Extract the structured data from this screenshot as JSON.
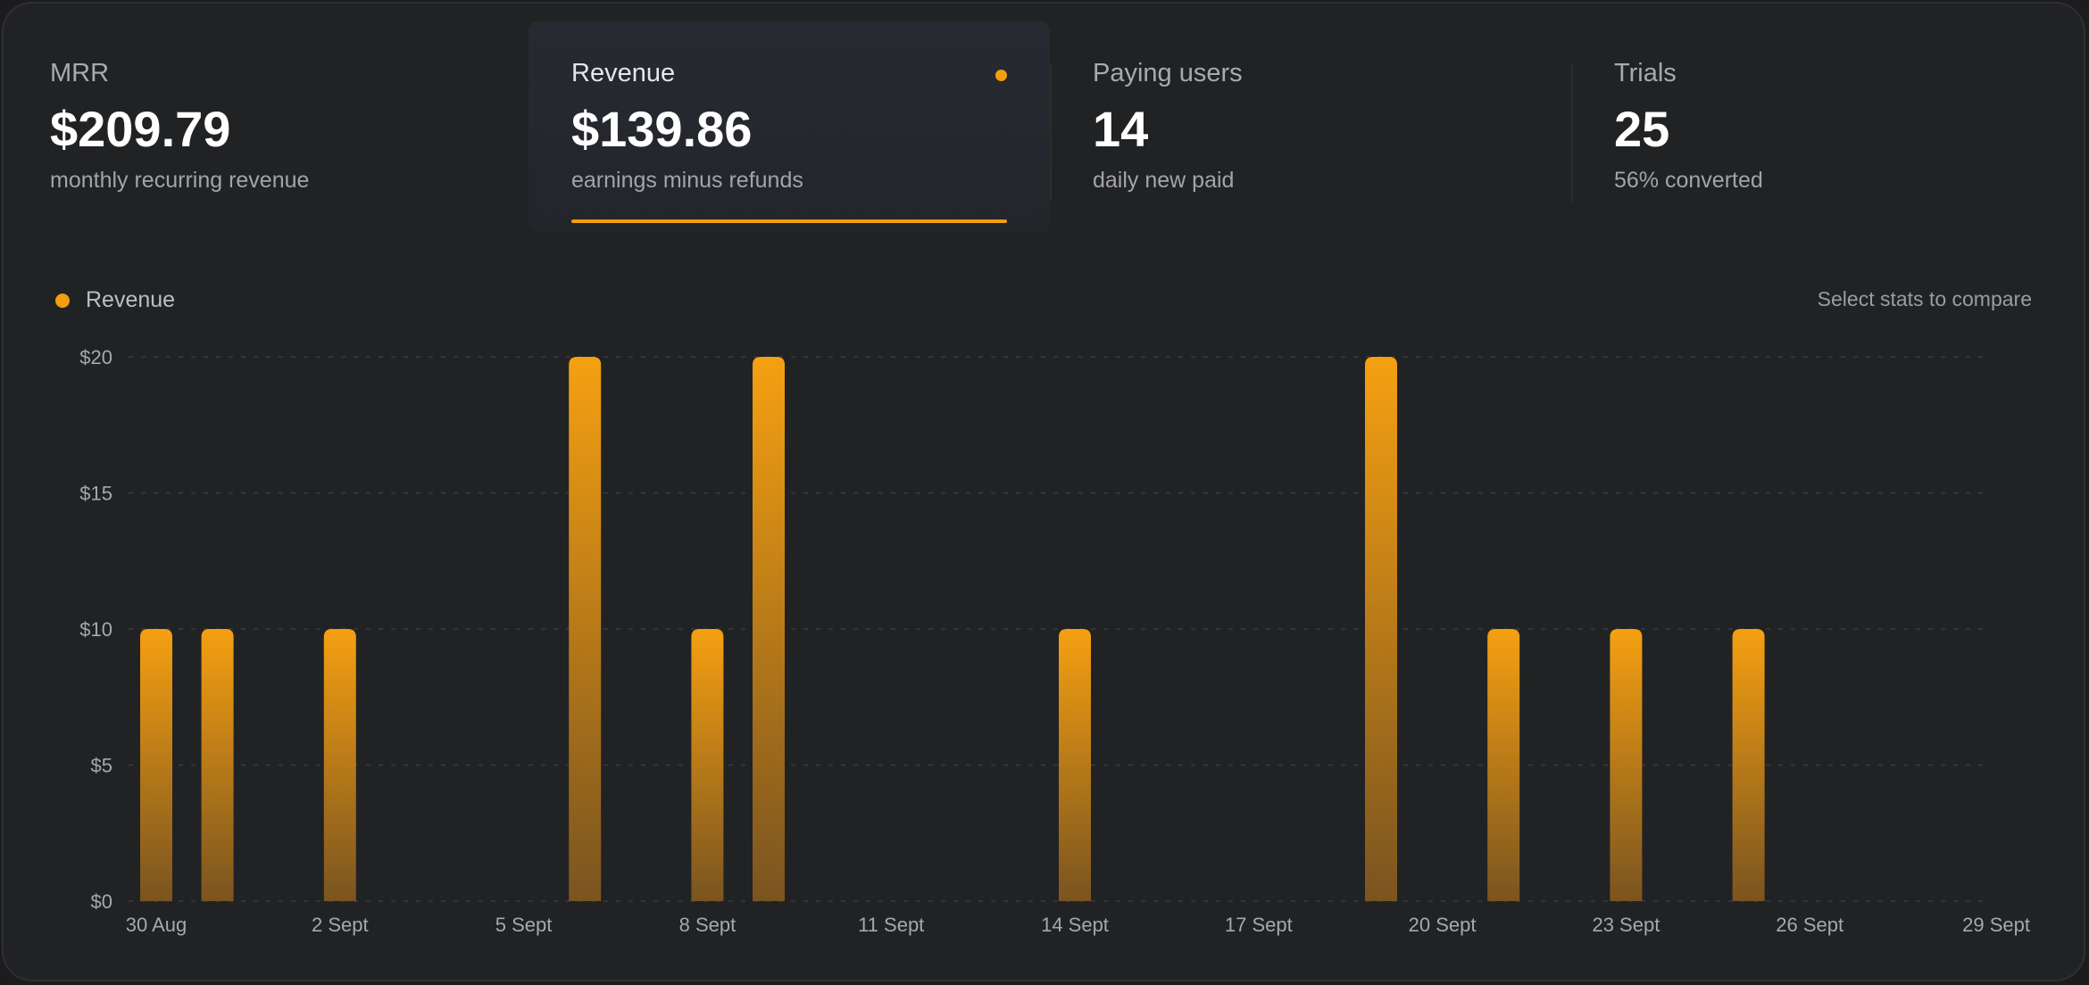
{
  "colors": {
    "accent": "#f29d12",
    "background": "#212224"
  },
  "stats": [
    {
      "label": "MRR",
      "value": "$209.79",
      "sub": "monthly recurring revenue"
    },
    {
      "label": "Revenue",
      "value": "$139.86",
      "sub": "earnings minus refunds"
    },
    {
      "label": "Paying users",
      "value": "14",
      "sub": "daily new paid"
    },
    {
      "label": "Trials",
      "value": "25",
      "sub": "56% converted"
    }
  ],
  "active_stat": "Revenue",
  "legend": {
    "label": "Revenue"
  },
  "compare_label": "Select stats to compare",
  "chart_data": {
    "type": "bar",
    "x_tick_labels": [
      "30 Aug",
      "2 Sept",
      "5 Sept",
      "8 Sept",
      "11 Sept",
      "14 Sept",
      "17 Sept",
      "20 Sept",
      "23 Sept",
      "26 Sept",
      "29 Sept"
    ],
    "y_tick_labels": [
      "$0",
      "$5",
      "$10",
      "$15",
      "$20"
    ],
    "ylim": [
      0,
      20
    ],
    "y_ticks": [
      0,
      5,
      10,
      15,
      20
    ],
    "grid": true,
    "legend_position": "top-left",
    "series": [
      {
        "name": "Revenue",
        "categories": [
          "30 Aug",
          "31 Aug",
          "1 Sept",
          "2 Sept",
          "3 Sept",
          "4 Sept",
          "5 Sept",
          "6 Sept",
          "7 Sept",
          "8 Sept",
          "9 Sept",
          "10 Sept",
          "11 Sept",
          "12 Sept",
          "13 Sept",
          "14 Sept",
          "15 Sept",
          "16 Sept",
          "17 Sept",
          "18 Sept",
          "19 Sept",
          "20 Sept",
          "21 Sept",
          "22 Sept",
          "23 Sept",
          "24 Sept",
          "25 Sept",
          "26 Sept",
          "27 Sept",
          "28 Sept",
          "29 Sept"
        ],
        "values": [
          10,
          10,
          0,
          10,
          0,
          0,
          0,
          20,
          0,
          10,
          20,
          0,
          0,
          0,
          0,
          10,
          0,
          0,
          0,
          0,
          20,
          0,
          10,
          0,
          10,
          0,
          10,
          0,
          0,
          0,
          0
        ]
      }
    ]
  }
}
